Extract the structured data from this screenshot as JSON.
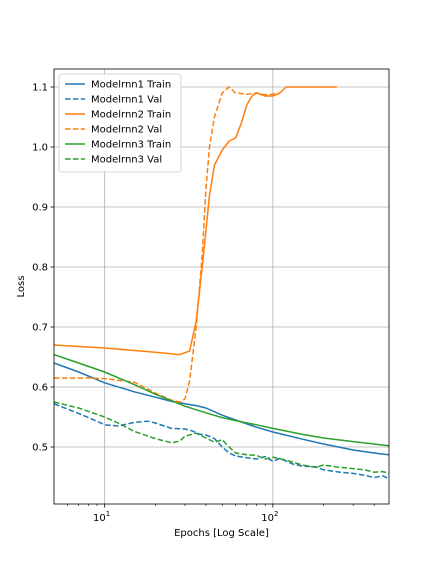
{
  "chart_data": {
    "type": "line",
    "xlabel": "Epochs [Log Scale]",
    "ylabel": "Loss",
    "xscale": "log",
    "xlim": [
      5,
      490
    ],
    "ylim": [
      0.405,
      1.13
    ],
    "grid": true,
    "legend_position": "top-left",
    "x_ticks": [
      {
        "value": 10,
        "base": "10",
        "exp": "1"
      },
      {
        "value": 100,
        "base": "10",
        "exp": "2"
      }
    ],
    "y_ticks": [
      {
        "value": 0.5,
        "label": "0.5"
      },
      {
        "value": 0.6,
        "label": "0.6"
      },
      {
        "value": 0.7,
        "label": "0.7"
      },
      {
        "value": 0.8,
        "label": "0.8"
      },
      {
        "value": 0.9,
        "label": "0.9"
      },
      {
        "value": 1.0,
        "label": "1.0"
      },
      {
        "value": 1.1,
        "label": "1.1"
      }
    ],
    "series": [
      {
        "name": "Modelrnn1 Train",
        "color": "#1f77b4",
        "dash": "solid",
        "x": [
          5,
          7,
          10,
          15,
          20,
          25,
          30,
          35,
          40,
          50,
          60,
          80,
          100,
          150,
          200,
          300,
          400,
          490
        ],
        "y": [
          0.64,
          0.625,
          0.607,
          0.592,
          0.583,
          0.576,
          0.572,
          0.569,
          0.565,
          0.553,
          0.545,
          0.533,
          0.525,
          0.513,
          0.505,
          0.495,
          0.49,
          0.487
        ]
      },
      {
        "name": "Modelrnn1 Val",
        "color": "#1f77b4",
        "dash": "dashed",
        "x": [
          5,
          7,
          9,
          10,
          12,
          15,
          18,
          20,
          25,
          30,
          33,
          37,
          40,
          45,
          50,
          55,
          60,
          70,
          80,
          90,
          100,
          110,
          130,
          150,
          180,
          200,
          250,
          300,
          350,
          400,
          450,
          490
        ],
        "y": [
          0.572,
          0.556,
          0.543,
          0.537,
          0.535,
          0.541,
          0.543,
          0.54,
          0.531,
          0.53,
          0.527,
          0.521,
          0.52,
          0.514,
          0.5,
          0.49,
          0.485,
          0.482,
          0.48,
          0.484,
          0.476,
          0.481,
          0.472,
          0.468,
          0.467,
          0.462,
          0.458,
          0.456,
          0.453,
          0.449,
          0.452,
          0.447
        ]
      },
      {
        "name": "Modelrnn2 Train",
        "color": "#ff7f0e",
        "dash": "solid",
        "x": [
          5,
          10,
          20,
          28,
          32,
          35,
          38,
          40,
          42,
          45,
          50,
          55,
          60,
          65,
          70,
          75,
          80,
          90,
          100,
          110,
          120,
          150,
          200,
          240
        ],
        "y": [
          0.67,
          0.665,
          0.658,
          0.654,
          0.66,
          0.71,
          0.8,
          0.86,
          0.92,
          0.97,
          0.995,
          1.01,
          1.015,
          1.04,
          1.07,
          1.085,
          1.09,
          1.085,
          1.085,
          1.09,
          1.1,
          1.1,
          1.1,
          1.1
        ]
      },
      {
        "name": "Modelrnn2 Val",
        "color": "#ff7f0e",
        "dash": "dashed",
        "x": [
          5,
          8,
          10,
          15,
          20,
          25,
          28,
          30,
          32,
          35,
          38,
          40,
          42,
          45,
          50,
          55,
          60,
          70,
          80,
          90,
          100,
          105
        ],
        "y": [
          0.615,
          0.615,
          0.614,
          0.608,
          0.59,
          0.578,
          0.575,
          0.58,
          0.61,
          0.7,
          0.82,
          0.93,
          1.0,
          1.05,
          1.09,
          1.1,
          1.09,
          1.088,
          1.09,
          1.087,
          1.088,
          1.09
        ]
      },
      {
        "name": "Modelrnn3 Train",
        "color": "#2ca02c",
        "dash": "solid",
        "x": [
          5,
          7,
          10,
          15,
          20,
          25,
          30,
          40,
          50,
          60,
          80,
          100,
          150,
          200,
          300,
          400,
          490
        ],
        "y": [
          0.654,
          0.64,
          0.625,
          0.604,
          0.588,
          0.577,
          0.568,
          0.557,
          0.549,
          0.544,
          0.537,
          0.531,
          0.521,
          0.515,
          0.509,
          0.505,
          0.502
        ]
      },
      {
        "name": "Modelrnn3 Val",
        "color": "#2ca02c",
        "dash": "dashed",
        "x": [
          5,
          7,
          10,
          12,
          15,
          20,
          25,
          28,
          30,
          35,
          40,
          45,
          50,
          55,
          60,
          70,
          80,
          90,
          100,
          120,
          150,
          180,
          200,
          250,
          300,
          350,
          400,
          450,
          490
        ],
        "y": [
          0.575,
          0.565,
          0.55,
          0.54,
          0.526,
          0.514,
          0.507,
          0.51,
          0.518,
          0.523,
          0.515,
          0.508,
          0.512,
          0.5,
          0.49,
          0.487,
          0.486,
          0.48,
          0.483,
          0.478,
          0.47,
          0.466,
          0.47,
          0.466,
          0.464,
          0.462,
          0.458,
          0.459,
          0.456
        ]
      }
    ]
  }
}
